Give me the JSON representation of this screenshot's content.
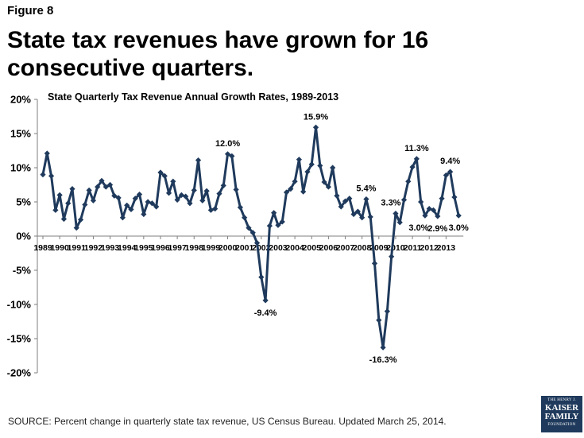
{
  "figure_label": "Figure 8",
  "headline": "State tax revenues have grown for 16 consecutive quarters.",
  "source": "SOURCE: Percent change in quarterly state tax revenue, US Census Bureau.  Updated March 25, 2014.",
  "logo": {
    "line1": "THE HENRY J.",
    "line2": "KAISER",
    "line3": "FAMILY",
    "line4": "FOUNDATION"
  },
  "colors": {
    "series": "#1f3a5c"
  },
  "chart_data": {
    "type": "line",
    "title": "State Quarterly Tax Revenue Annual Growth Rates, 1989-2013",
    "xlabel": "",
    "ylabel": "",
    "ylim": [
      -20,
      20
    ],
    "y_ticks": [
      20,
      15,
      10,
      5,
      0,
      -5,
      -10,
      -15,
      -20
    ],
    "y_tick_labels": [
      "20%",
      "15%",
      "10%",
      "5%",
      "0%",
      "-5%",
      "-10%",
      "-15%",
      "-20%"
    ],
    "x_tick_labels": [
      "1989",
      "1990",
      "1991",
      "1992",
      "1993",
      "1994",
      "1995",
      "1996",
      "1997",
      "1998",
      "1999",
      "2000",
      "2001",
      "2002",
      "2003",
      "2004",
      "2005",
      "2006",
      "2007",
      "2008",
      "2009",
      "2010",
      "2011",
      "2012",
      "2013"
    ],
    "series": [
      {
        "name": "Annual growth rate (%)",
        "values": [
          9.0,
          12.1,
          8.8,
          3.8,
          6.0,
          2.5,
          4.8,
          6.9,
          1.2,
          2.4,
          4.6,
          6.7,
          5.2,
          7.2,
          8.1,
          7.2,
          7.5,
          5.9,
          5.6,
          2.7,
          4.5,
          3.9,
          5.5,
          6.1,
          3.2,
          5.0,
          4.8,
          4.3,
          9.3,
          8.8,
          6.3,
          8.0,
          5.3,
          6.0,
          5.8,
          4.8,
          6.7,
          11.1,
          5.2,
          6.6,
          3.8,
          4.0,
          6.2,
          7.4,
          12.0,
          11.7,
          6.8,
          4.2,
          2.7,
          1.2,
          0.5,
          -1.0,
          -6.0,
          -9.4,
          1.5,
          3.4,
          1.6,
          2.1,
          6.4,
          6.9,
          8.0,
          11.2,
          6.5,
          9.4,
          10.5,
          15.9,
          10.3,
          7.9,
          7.2,
          10.0,
          5.9,
          4.3,
          5.1,
          5.5,
          3.2,
          3.6,
          2.7,
          5.4,
          2.8,
          -4.0,
          -12.3,
          -16.3,
          -11.0,
          -3.0,
          3.3,
          2.0,
          5.3,
          8.0,
          10.1,
          11.3,
          5.0,
          3.0,
          4.0,
          3.8,
          2.9,
          5.5,
          8.9,
          9.4,
          5.7,
          3.0
        ]
      }
    ],
    "annotations": [
      {
        "index": 44,
        "label": "12.0%",
        "position": "above"
      },
      {
        "index": 53,
        "label": "-9.4%",
        "position": "below"
      },
      {
        "index": 65,
        "label": "15.9%",
        "position": "above"
      },
      {
        "index": 77,
        "label": "5.4%",
        "position": "above"
      },
      {
        "index": 81,
        "label": "-16.3%",
        "position": "below"
      },
      {
        "index": 84,
        "label": "3.3%",
        "position": "above-left"
      },
      {
        "index": 89,
        "label": "11.3%",
        "position": "above"
      },
      {
        "index": 91,
        "label": "3.0%",
        "position": "below-left"
      },
      {
        "index": 94,
        "label": "2.9%",
        "position": "below"
      },
      {
        "index": 97,
        "label": "9.4%",
        "position": "above"
      },
      {
        "index": 99,
        "label": "3.0%",
        "position": "below"
      }
    ]
  }
}
